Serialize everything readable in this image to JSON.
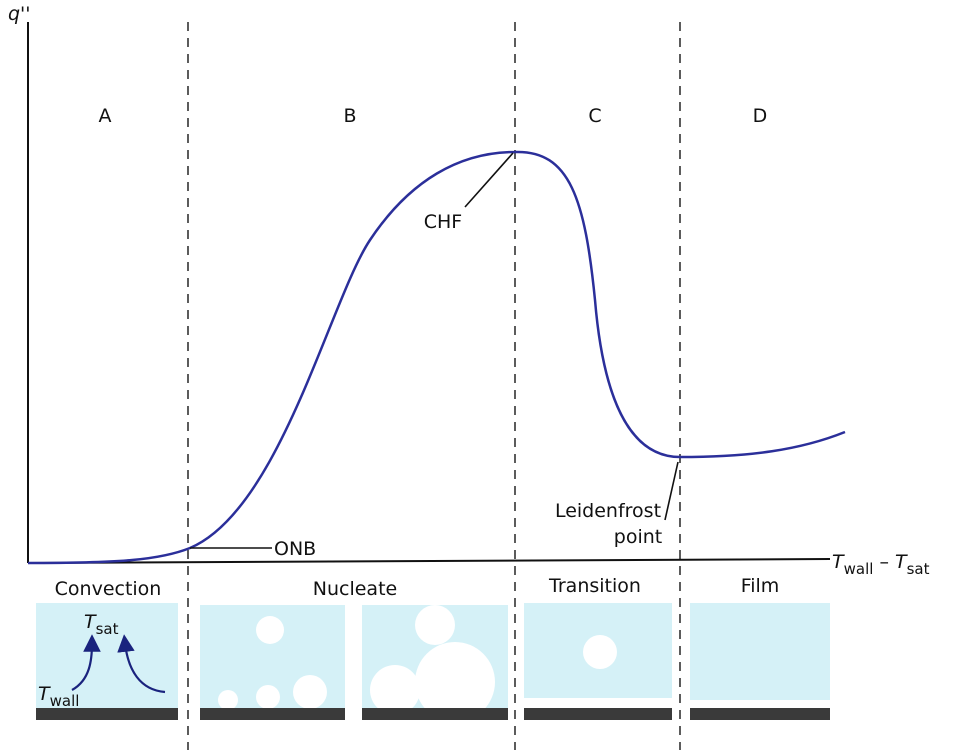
{
  "axes": {
    "y_label": "q''",
    "x_label": {
      "base1": "T",
      "sub1": "wall",
      "minus": " – ",
      "base2": "T",
      "sub2": "sat"
    }
  },
  "regions": [
    "A",
    "B",
    "C",
    "D"
  ],
  "annotations": {
    "chf": "CHF",
    "onb": "ONB",
    "leidenfrost": [
      "Leidenfrost",
      "point"
    ]
  },
  "regimes": [
    "Convection",
    "Nucleate",
    "Transition",
    "Film"
  ],
  "panel_labels": {
    "t_sat": {
      "base": "T",
      "sub": "sat"
    },
    "t_wall": {
      "base": "T",
      "sub": "wall"
    }
  }
}
